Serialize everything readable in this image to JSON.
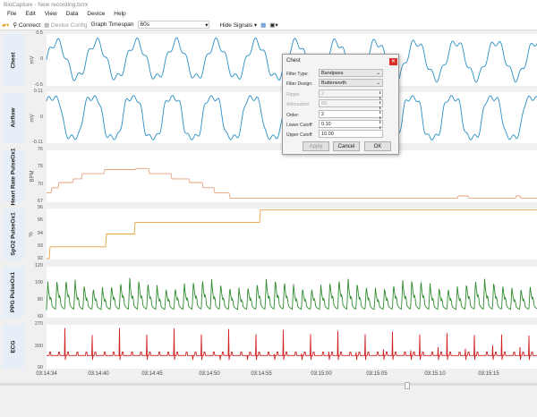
{
  "window": {
    "title": "BioCapture - New recording.bcrx"
  },
  "menu": [
    "File",
    "Edit",
    "View",
    "Data",
    "Device",
    "Help"
  ],
  "toolbar": {
    "connect": "Connect",
    "device_config": "Device Config",
    "timespan_label": "Graph Timespan",
    "timespan_value": "60s",
    "hide_signals": "Hide Signals"
  },
  "panels": [
    {
      "name": "Chest",
      "unit": "mV",
      "ticks": [
        "0.5",
        "0",
        "-0.5"
      ],
      "color": "#2a8fc4"
    },
    {
      "name": "Airflow",
      "unit": "mV",
      "ticks": [
        "0.11",
        "0",
        "-0.11"
      ],
      "color": "#2a8fc4"
    },
    {
      "name": "Heart Rate PulseOx1",
      "unit": "BPM",
      "ticks": [
        "76",
        "75",
        "70",
        "67"
      ],
      "color": "#e8a07a"
    },
    {
      "name": "SpO2 PulseOx1",
      "unit": "%",
      "ticks": [
        "96",
        "95",
        "94",
        "93",
        "92"
      ],
      "color": "#e8a040"
    },
    {
      "name": "PPG PulseOx1",
      "unit": "",
      "ticks": [
        "120",
        "100",
        "80",
        "60"
      ],
      "color": "#2e8b2e"
    },
    {
      "name": "ECG",
      "unit": "",
      "ticks": [
        "270",
        "200",
        "90"
      ],
      "color": "#d02020"
    }
  ],
  "time_axis": [
    "03:14:34",
    "03:14:40",
    "03:14:45",
    "03:14:50",
    "03:14:55",
    "03:15:00",
    "03:15:05",
    "03:15:10",
    "03:15:15"
  ],
  "dialog": {
    "title": "Chest",
    "filter_type_label": "Filter Type:",
    "filter_type": "Bandpass",
    "filter_design_label": "Filter Design:",
    "filter_design": "Butterworth",
    "ripple_label": "Ripple:",
    "ripple": "2",
    "attenuation_label": "Attenuation:",
    "attenuation": "60",
    "order_label": "Order:",
    "order": "2",
    "lower_label": "Lower Cutoff:",
    "lower": "0.10",
    "upper_label": "Upper Cutoff:",
    "upper": "10.00",
    "apply": "Apply",
    "cancel": "Cancel",
    "ok": "OK"
  }
}
